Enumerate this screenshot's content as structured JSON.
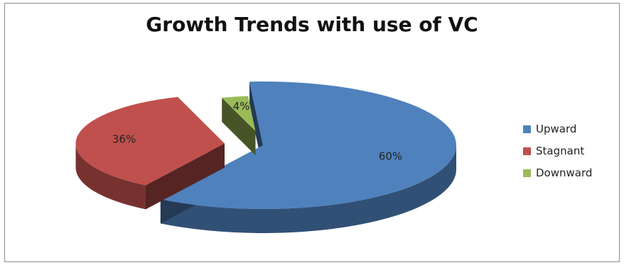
{
  "chart_data": {
    "type": "pie",
    "title": "Growth Trends with use of VC",
    "slices": [
      {
        "label": "Upward",
        "value": 60,
        "data_label": "60%",
        "color": "#4F81BD"
      },
      {
        "label": "Stagnant",
        "value": 36,
        "data_label": "36%",
        "color": "#C0504D"
      },
      {
        "label": "Downward",
        "value": 4,
        "data_label": "4%",
        "color": "#9BBB59"
      }
    ],
    "legend": {
      "position": "right",
      "entries": [
        "Upward",
        "Stagnant",
        "Downward"
      ]
    },
    "style": "3d-exploded"
  }
}
